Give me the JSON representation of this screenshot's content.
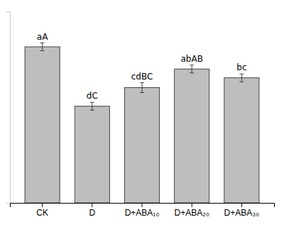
{
  "chart_data": {
    "type": "bar",
    "categories": [
      "CK",
      "D",
      "D+ABA₁₀",
      "D+ABA₂₀",
      "D+ABA₃₀"
    ],
    "values": [
      0.88,
      0.545,
      0.65,
      0.755,
      0.705
    ],
    "errors": [
      0.022,
      0.022,
      0.028,
      0.022,
      0.022
    ],
    "annotations": [
      "aA",
      "dC",
      "cdBC",
      "abAB",
      "bc"
    ],
    "color": "#bebebe",
    "ylim": [
      0,
      1.08
    ],
    "tick_labels": "x",
    "grid": false
  }
}
